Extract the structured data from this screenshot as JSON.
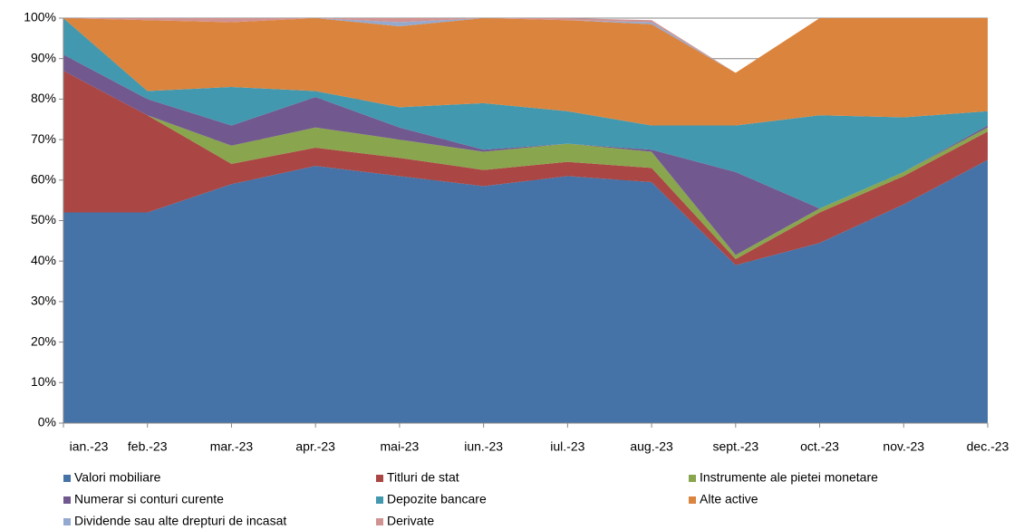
{
  "chart_data": {
    "type": "stacked_area",
    "categories": [
      "ian.-23",
      "feb.-23",
      "mar.-23",
      "apr.-23",
      "mai-23",
      "iun.-23",
      "iul.-23",
      "aug.-23",
      "sept.-23",
      "oct.-23",
      "nov.-23",
      "dec.-23"
    ],
    "ylim": [
      0,
      100
    ],
    "yticks": [
      {
        "value": 0,
        "label": "0%"
      },
      {
        "value": 10,
        "label": "10%"
      },
      {
        "value": 20,
        "label": "20%"
      },
      {
        "value": 30,
        "label": "30%"
      },
      {
        "value": 40,
        "label": "40%"
      },
      {
        "value": 50,
        "label": "50%"
      },
      {
        "value": 60,
        "label": "60%"
      },
      {
        "value": 70,
        "label": "70%"
      },
      {
        "value": 80,
        "label": "80%"
      },
      {
        "value": 90,
        "label": "90%"
      },
      {
        "value": 100,
        "label": "100%"
      }
    ],
    "grid": true,
    "series": [
      {
        "name": "Valori mobiliare",
        "color": "#4572a7",
        "values": [
          52,
          52,
          59,
          63.5,
          61,
          58.5,
          61,
          59.5,
          39,
          44.5,
          54,
          65
        ]
      },
      {
        "name": "Titluri de stat",
        "color": "#aa4643",
        "values": [
          35,
          24,
          5,
          4.5,
          4.5,
          4,
          3.5,
          3.5,
          1.5,
          7.5,
          7,
          7
        ]
      },
      {
        "name": "Instrumente ale pietei monetare",
        "color": "#89a54e",
        "values": [
          0,
          0,
          4.5,
          5,
          4.5,
          4.5,
          4.5,
          4,
          1,
          1,
          1,
          1
        ]
      },
      {
        "name": "Numerar si conturi curente",
        "color": "#71588f",
        "values": [
          4,
          4,
          5,
          7.5,
          3,
          0.5,
          0,
          0.5,
          20.5,
          0,
          0,
          0.5
        ]
      },
      {
        "name": "Depozite bancare",
        "color": "#4198af",
        "values": [
          9,
          2,
          9.5,
          1.5,
          5,
          11.5,
          8,
          6,
          11.5,
          23,
          13.5,
          3.5
        ]
      },
      {
        "name": "Alte active",
        "color": "#db843d",
        "values": [
          0,
          17.5,
          16,
          18,
          20,
          21,
          22.5,
          25,
          13,
          24,
          24.5,
          23
        ]
      },
      {
        "name": "Dividende sau alte drepturi de incasat",
        "color": "#93a9cf",
        "values": [
          0,
          0,
          0,
          0,
          1,
          0,
          0,
          0.5,
          0,
          0,
          0,
          0
        ]
      },
      {
        "name": "Derivate",
        "color": "#d19392",
        "values": [
          0,
          0.5,
          1,
          0,
          1,
          0,
          0.5,
          0.5,
          0,
          0,
          0,
          0
        ]
      }
    ]
  }
}
